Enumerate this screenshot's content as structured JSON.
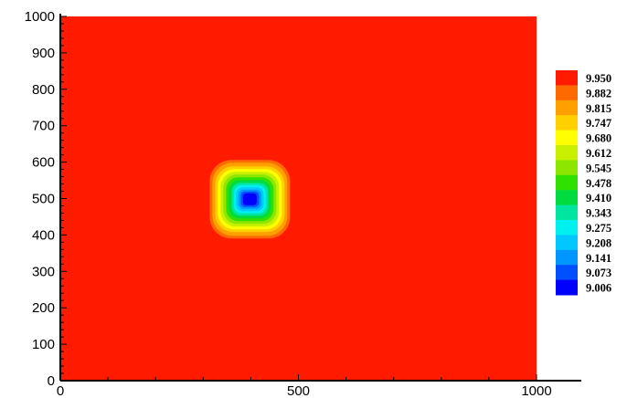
{
  "chart_data": {
    "type": "heatmap",
    "title": "",
    "xlabel": "",
    "ylabel": "",
    "xlim": [
      0,
      1000
    ],
    "ylim": [
      0,
      1000
    ],
    "x_ticks": [
      0,
      500,
      1000
    ],
    "y_ticks": [
      0,
      100,
      200,
      300,
      400,
      500,
      600,
      700,
      800,
      900,
      1000
    ],
    "x_tick_labels": [
      "0",
      "500",
      "1000"
    ],
    "y_tick_labels": [
      "0",
      "100",
      "200",
      "300",
      "400",
      "500",
      "600",
      "700",
      "800",
      "900",
      "1000"
    ],
    "background_value": 9.95,
    "feature": {
      "shape": "rounded-square depression",
      "center": [
        398,
        498
      ],
      "half_width": 82,
      "min_value": 9.006
    },
    "grid": false,
    "legend": {
      "position": "right",
      "levels": [
        "9.950",
        "9.882",
        "9.815",
        "9.747",
        "9.680",
        "9.612",
        "9.545",
        "9.478",
        "9.410",
        "9.343",
        "9.275",
        "9.208",
        "9.141",
        "9.073",
        "9.006"
      ],
      "colors": [
        "#ff1a00",
        "#ff6a00",
        "#ffa000",
        "#ffd000",
        "#ffff00",
        "#c8f000",
        "#8ce600",
        "#30e000",
        "#00dc40",
        "#00e6a0",
        "#00f0f0",
        "#00c8ff",
        "#0096ff",
        "#0050ff",
        "#0000ff"
      ]
    }
  }
}
